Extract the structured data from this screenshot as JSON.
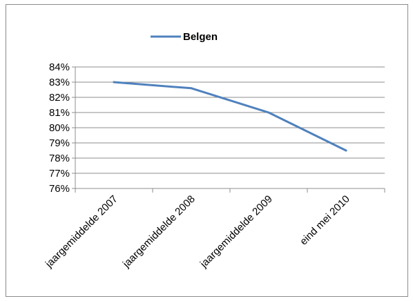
{
  "chart_data": {
    "type": "line",
    "categories": [
      "jaargemiddelde 2007",
      "jaargemiddelde 2008",
      "jaargemiddelde 2009",
      "eind mei 2010"
    ],
    "series": [
      {
        "name": "Belgen",
        "values": [
          83.0,
          82.6,
          81.0,
          78.5
        ],
        "color": "#4f81bd"
      }
    ],
    "title": "",
    "xlabel": "",
    "ylabel": "",
    "ylim": [
      76,
      84
    ],
    "y_ticks": [
      "76%",
      "77%",
      "78%",
      "79%",
      "80%",
      "81%",
      "82%",
      "83%",
      "84%"
    ],
    "grid": true,
    "legend_position": "top"
  }
}
